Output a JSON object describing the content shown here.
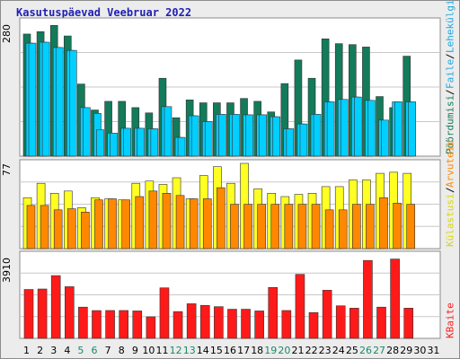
{
  "title": "Kasutuspäevad Veebruar 2022",
  "colors": {
    "background": "#ececec",
    "panel": "#ffffff",
    "grid": "#c8c8c8",
    "visits": "#137a5a",
    "hosts": "#2f3ee0",
    "pages": "#00cfff",
    "files": "#00cfff",
    "hits": "#ffff22",
    "sites": "#ff8800",
    "kbytes": "#ff1a1a",
    "weekday_label": "#000000",
    "weekend_label": "#1a8a6a"
  },
  "legend": {
    "top": [
      {
        "text": "Pöördumisi",
        "color": "#137a5a"
      },
      {
        "text": "/",
        "color": "#000000"
      },
      {
        "text": "Faile",
        "color": "#1fa8e0"
      },
      {
        "text": "/",
        "color": "#000000"
      },
      {
        "text": "Lehekülgi",
        "color": "#1fa8e0"
      }
    ],
    "middle": [
      {
        "text": "Külastusi",
        "color": "#d8d800"
      },
      {
        "text": "/",
        "color": "#000000"
      },
      {
        "text": "Arvuteid",
        "color": "#ff8800"
      }
    ],
    "bottom": [
      {
        "text": "KBaite",
        "color": "#ff1a1a"
      }
    ]
  },
  "chart_data": [
    {
      "type": "bar",
      "panel": "top",
      "ymax_label": "280",
      "ylim": [
        0,
        280
      ],
      "x": [
        1,
        2,
        3,
        4,
        5,
        6,
        7,
        8,
        9,
        10,
        11,
        12,
        13,
        14,
        15,
        16,
        17,
        18,
        19,
        20,
        21,
        22,
        23,
        24,
        25,
        26,
        27,
        28,
        29,
        30,
        31
      ],
      "weekend_days": [
        5,
        6,
        12,
        13,
        19,
        20,
        26,
        27
      ],
      "series": [
        {
          "name": "Pöördumisi",
          "color": "#137a5a",
          "values": [
            254,
            259,
            272,
            250,
            150,
            96,
            114,
            114,
            101,
            90,
            162,
            80,
            117,
            111,
            111,
            111,
            120,
            114,
            92,
            151,
            200,
            162,
            244,
            234,
            232,
            227,
            124,
            101,
            208,
            null,
            null
          ]
        },
        {
          "name": "Faile",
          "color": "#00cfff",
          "values": [
            235,
            237,
            226,
            220,
            101,
            89,
            48,
            58,
            58,
            57,
            103,
            39,
            84,
            72,
            87,
            87,
            86,
            86,
            82,
            57,
            67,
            87,
            113,
            118,
            123,
            116,
            75,
            113,
            113,
            null,
            null
          ]
        },
        {
          "name": "Lehekülgi",
          "color": "#00cfff",
          "values": [
            235,
            237,
            226,
            220,
            101,
            55,
            48,
            58,
            58,
            57,
            103,
            39,
            84,
            72,
            87,
            87,
            86,
            86,
            82,
            57,
            67,
            87,
            113,
            118,
            123,
            116,
            75,
            113,
            113,
            null,
            null
          ]
        }
      ]
    },
    {
      "type": "bar",
      "panel": "middle",
      "ymax_label": "77",
      "ylim": [
        0,
        77
      ],
      "x": [
        1,
        2,
        3,
        4,
        5,
        6,
        7,
        8,
        9,
        10,
        11,
        12,
        13,
        14,
        15,
        16,
        17,
        18,
        19,
        20,
        21,
        22,
        23,
        24,
        25,
        26,
        27,
        28,
        29,
        30,
        31
      ],
      "series": [
        {
          "name": "Külastusi",
          "color": "#ffff22",
          "values": [
            46,
            59,
            50,
            52,
            37,
            46,
            45,
            44,
            59,
            61,
            58,
            64,
            45,
            66,
            74,
            59,
            77,
            54,
            50,
            47,
            49,
            50,
            56,
            56,
            62,
            62,
            68,
            69,
            68,
            null,
            null
          ]
        },
        {
          "name": "Arvuteid",
          "color": "#ff8800",
          "values": [
            39,
            39,
            35,
            36,
            33,
            44,
            45,
            44,
            47,
            52,
            50,
            48,
            45,
            45,
            55,
            40,
            40,
            40,
            40,
            40,
            40,
            40,
            35,
            35,
            40,
            40,
            46,
            41,
            40,
            null,
            null
          ]
        }
      ]
    },
    {
      "type": "bar",
      "panel": "bottom",
      "ymax_label": "3910",
      "ylim": [
        0,
        3910
      ],
      "x": [
        1,
        2,
        3,
        4,
        5,
        6,
        7,
        8,
        9,
        10,
        11,
        12,
        13,
        14,
        15,
        16,
        17,
        18,
        19,
        20,
        21,
        22,
        23,
        24,
        25,
        26,
        27,
        28,
        29,
        30,
        31
      ],
      "series": [
        {
          "name": "KBaite",
          "color": "#ff1a1a",
          "values": [
            2290,
            2312,
            2940,
            2420,
            1463,
            1302,
            1305,
            1305,
            1285,
            1010,
            2366,
            1255,
            1622,
            1543,
            1485,
            1365,
            1365,
            1285,
            2386,
            1305,
            2999,
            1208,
            2255,
            1525,
            1415,
            3650,
            1463,
            3716,
            1416,
            null,
            null
          ]
        }
      ]
    }
  ]
}
